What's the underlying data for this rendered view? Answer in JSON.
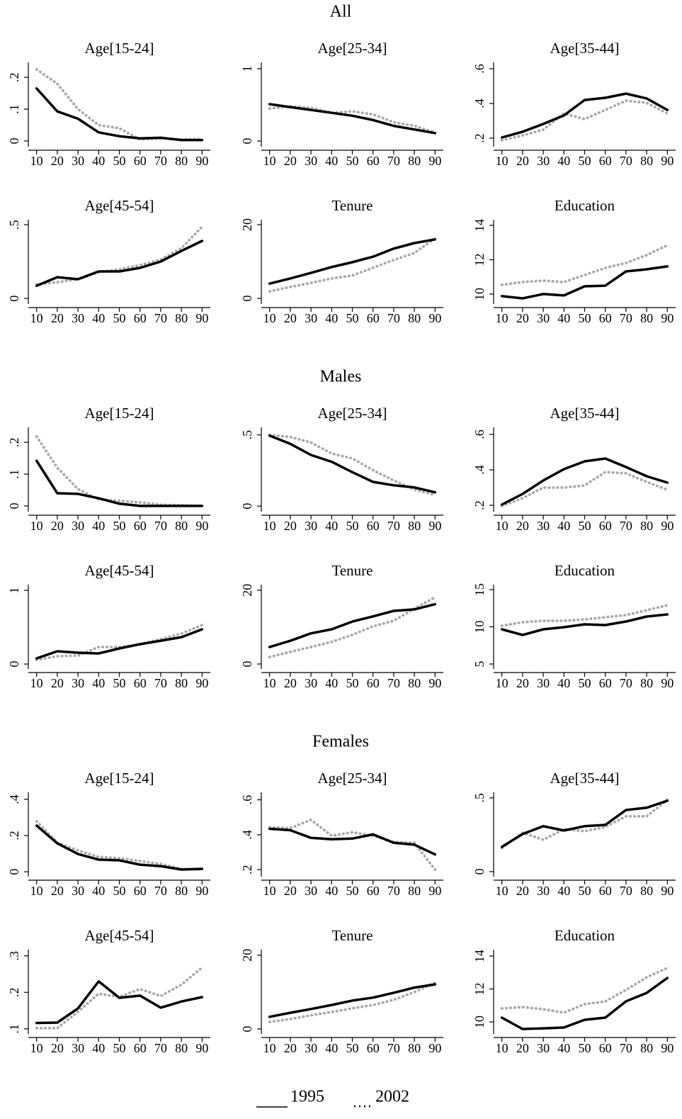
{
  "panel_groups": [
    "All",
    "Males",
    "Females"
  ],
  "legend": [
    {
      "name": "1995",
      "color": "#000000"
    },
    {
      "name": "2002",
      "color": "#aaaaaa"
    }
  ],
  "chart_data": [
    {
      "type": "line",
      "title": "Age[15-24]",
      "x": [
        10,
        20,
        30,
        40,
        50,
        60,
        70,
        80,
        90
      ],
      "xlim": [
        6,
        94
      ],
      "xticks": [
        10,
        20,
        30,
        40,
        50,
        60,
        70,
        80,
        90
      ],
      "ylim": [
        -0.018,
        0.247
      ],
      "yticks": [
        0,
        {
          "value": 0.1,
          "label": ".1"
        },
        {
          "value": 0.2,
          "label": ".2"
        }
      ],
      "series": [
        {
          "color": "#000000",
          "values": [
            0.165,
            0.093,
            0.07,
            0.027,
            0.015,
            0.008,
            0.01,
            0.003,
            0.003
          ]
        },
        {
          "color": "#aaaaaa",
          "values": [
            0.225,
            0.18,
            0.1,
            0.05,
            0.04,
            0.005,
            0.008,
            0.005,
            0.006
          ]
        }
      ]
    },
    {
      "type": "line",
      "title": "Age[25-34]",
      "x": [
        10,
        20,
        30,
        40,
        50,
        60,
        70,
        80,
        90
      ],
      "xlim": [
        6,
        94
      ],
      "xticks": [
        10,
        20,
        30,
        40,
        50,
        60,
        70,
        80,
        90
      ],
      "ylim": [
        -0.078,
        1.088
      ],
      "yticks": [
        0,
        1
      ],
      "series": [
        {
          "color": "#000000",
          "values": [
            0.51,
            0.47,
            0.43,
            0.39,
            0.35,
            0.29,
            0.21,
            0.16,
            0.11
          ]
        },
        {
          "color": "#aaaaaa",
          "values": [
            0.45,
            0.48,
            0.46,
            0.39,
            0.41,
            0.37,
            0.26,
            0.21,
            0.12
          ]
        }
      ]
    },
    {
      "type": "line",
      "title": "Age[35-44]",
      "x": [
        10,
        20,
        30,
        40,
        50,
        60,
        70,
        80,
        90
      ],
      "xlim": [
        6,
        94
      ],
      "xticks": [
        10,
        20,
        30,
        40,
        50,
        60,
        70,
        80,
        90
      ],
      "ylim": [
        0.151,
        0.637
      ],
      "yticks": [
        {
          "value": 0.2,
          "label": ".2"
        },
        {
          "value": 0.4,
          "label": ".4"
        },
        {
          "value": 0.6,
          "label": ".6"
        }
      ],
      "series": [
        {
          "color": "#000000",
          "values": [
            0.204,
            0.237,
            0.282,
            0.331,
            0.42,
            0.433,
            0.457,
            0.429,
            0.363
          ]
        },
        {
          "color": "#aaaaaa",
          "values": [
            0.188,
            0.216,
            0.249,
            0.343,
            0.31,
            0.363,
            0.416,
            0.404,
            0.343
          ]
        }
      ]
    },
    {
      "type": "line",
      "title": "Age[45-54]",
      "x": [
        10,
        20,
        30,
        40,
        50,
        60,
        70,
        80,
        90
      ],
      "xlim": [
        6,
        94
      ],
      "xticks": [
        10,
        20,
        30,
        40,
        50,
        60,
        70,
        80,
        90
      ],
      "ylim": [
        -0.038,
        0.534
      ],
      "yticks": [
        0,
        {
          "value": 0.5,
          "label": ".5"
        }
      ],
      "series": [
        {
          "color": "#000000",
          "values": [
            0.086,
            0.144,
            0.13,
            0.183,
            0.183,
            0.207,
            0.25,
            0.322,
            0.39
          ]
        },
        {
          "color": "#aaaaaa",
          "values": [
            0.096,
            0.11,
            0.13,
            0.178,
            0.197,
            0.226,
            0.264,
            0.341,
            0.486
          ]
        }
      ]
    },
    {
      "type": "line",
      "title": "Tenure",
      "x": [
        10,
        20,
        30,
        40,
        50,
        60,
        70,
        80,
        90
      ],
      "xlim": [
        6,
        94
      ],
      "xticks": [
        10,
        20,
        30,
        40,
        50,
        60,
        70,
        80,
        90
      ],
      "ylim": [
        -1.54,
        21.35
      ],
      "yticks": [
        0,
        20
      ],
      "series": [
        {
          "color": "#000000",
          "values": [
            4.0,
            5.4,
            6.9,
            8.5,
            9.8,
            11.3,
            13.5,
            15.0,
            16.0
          ]
        },
        {
          "color": "#aaaaaa",
          "values": [
            1.9,
            3.1,
            4.2,
            5.4,
            6.2,
            8.3,
            10.4,
            12.3,
            16.3
          ]
        }
      ]
    },
    {
      "type": "line",
      "title": "Education",
      "x": [
        10,
        20,
        30,
        40,
        50,
        60,
        70,
        80,
        90
      ],
      "xlim": [
        6,
        94
      ],
      "xticks": [
        10,
        20,
        30,
        40,
        50,
        60,
        70,
        80,
        90
      ],
      "ylim": [
        9.42,
        14.33
      ],
      "yticks": [
        10,
        12,
        14
      ],
      "series": [
        {
          "color": "#000000",
          "values": [
            9.88,
            9.75,
            10,
            9.92,
            10.45,
            10.49,
            11.32,
            11.44,
            11.61
          ]
        },
        {
          "color": "#aaaaaa",
          "values": [
            10.54,
            10.7,
            10.78,
            10.7,
            11.11,
            11.52,
            11.81,
            12.27,
            12.84
          ]
        }
      ]
    },
    {
      "type": "line",
      "title": "Age[15-24]",
      "x": [
        10,
        20,
        30,
        40,
        50,
        60,
        70,
        80,
        90
      ],
      "xlim": [
        6,
        94
      ],
      "xticks": [
        10,
        20,
        30,
        40,
        50,
        60,
        70,
        80,
        90
      ],
      "ylim": [
        -0.018,
        0.247
      ],
      "yticks": [
        0,
        {
          "value": 0.1,
          "label": ".1"
        },
        {
          "value": 0.2,
          "label": ".2"
        }
      ],
      "series": [
        {
          "color": "#000000",
          "values": [
            0.142,
            0.04,
            0.038,
            0.024,
            0.007,
            0,
            0,
            0,
            0
          ]
        },
        {
          "color": "#aaaaaa",
          "values": [
            0.218,
            0.12,
            0.053,
            0.02,
            0.016,
            0.011,
            0.004,
            0.002,
            0
          ]
        }
      ]
    },
    {
      "type": "line",
      "title": "Age[25-34]",
      "x": [
        10,
        20,
        30,
        40,
        50,
        60,
        70,
        80,
        90
      ],
      "xlim": [
        6,
        94
      ],
      "xticks": [
        10,
        20,
        30,
        40,
        50,
        60,
        70,
        80,
        90
      ],
      "ylim": [
        -0.039,
        0.553
      ],
      "yticks": [
        0,
        {
          "value": 0.5,
          "label": ".5"
        }
      ],
      "series": [
        {
          "color": "#000000",
          "values": [
            0.495,
            0.437,
            0.359,
            0.311,
            0.238,
            0.17,
            0.146,
            0.131,
            0.097
          ]
        },
        {
          "color": "#aaaaaa",
          "values": [
            0.5,
            0.485,
            0.447,
            0.369,
            0.335,
            0.252,
            0.18,
            0.116,
            0.078
          ]
        }
      ]
    },
    {
      "type": "line",
      "title": "Age[35-44]",
      "x": [
        10,
        20,
        30,
        40,
        50,
        60,
        70,
        80,
        90
      ],
      "xlim": [
        6,
        94
      ],
      "xticks": [
        10,
        20,
        30,
        40,
        50,
        60,
        70,
        80,
        90
      ],
      "ylim": [
        0.164,
        0.64
      ],
      "yticks": [
        {
          "value": 0.2,
          "label": ".2"
        },
        {
          "value": 0.4,
          "label": ".4"
        },
        {
          "value": 0.6,
          "label": ".6"
        }
      ],
      "series": [
        {
          "color": "#000000",
          "values": [
            0.204,
            0.264,
            0.34,
            0.404,
            0.448,
            0.464,
            0.416,
            0.364,
            0.328
          ]
        },
        {
          "color": "#aaaaaa",
          "values": [
            0.196,
            0.24,
            0.3,
            0.3,
            0.312,
            0.388,
            0.38,
            0.332,
            0.288
          ]
        }
      ]
    },
    {
      "type": "line",
      "title": "Age[45-54]",
      "x": [
        10,
        20,
        30,
        40,
        50,
        60,
        70,
        80,
        90
      ],
      "xlim": [
        6,
        94
      ],
      "xticks": [
        10,
        20,
        30,
        40,
        50,
        60,
        70,
        80,
        90
      ],
      "ylim": [
        -0.067,
        1.077
      ],
      "yticks": [
        0,
        1
      ],
      "series": [
        {
          "color": "#000000",
          "values": [
            0.077,
            0.173,
            0.154,
            0.144,
            0.212,
            0.269,
            0.317,
            0.365,
            0.471
          ]
        },
        {
          "color": "#aaaaaa",
          "values": [
            0.058,
            0.106,
            0.115,
            0.231,
            0.231,
            0.269,
            0.337,
            0.413,
            0.529
          ]
        }
      ]
    },
    {
      "type": "line",
      "title": "Tenure",
      "x": [
        10,
        20,
        30,
        40,
        50,
        60,
        70,
        80,
        90
      ],
      "xlim": [
        6,
        94
      ],
      "xticks": [
        10,
        20,
        30,
        40,
        50,
        60,
        70,
        80,
        90
      ],
      "ylim": [
        -1.35,
        21.5
      ],
      "yticks": [
        0,
        20
      ],
      "series": [
        {
          "color": "#000000",
          "values": [
            4.6,
            6.3,
            8.3,
            9.4,
            11.5,
            12.9,
            14.4,
            14.8,
            16.2
          ]
        },
        {
          "color": "#aaaaaa",
          "values": [
            1.9,
            3.3,
            4.6,
            6.0,
            7.9,
            10.2,
            11.7,
            15.0,
            18.1
          ]
        }
      ]
    },
    {
      "type": "line",
      "title": "Education",
      "x": [
        10,
        20,
        30,
        40,
        50,
        60,
        70,
        80,
        90
      ],
      "xlim": [
        6,
        94
      ],
      "xticks": [
        10,
        20,
        30,
        40,
        50,
        60,
        70,
        80,
        90
      ],
      "ylim": [
        4.33,
        15.67
      ],
      "yticks": [
        5,
        10,
        15
      ],
      "series": [
        {
          "color": "#000000",
          "values": [
            9.67,
            8.9,
            9.67,
            9.95,
            10.33,
            10.24,
            10.71,
            11.38,
            11.67
          ]
        },
        {
          "color": "#aaaaaa",
          "values": [
            10.14,
            10.62,
            10.81,
            10.81,
            11.0,
            11.29,
            11.57,
            12.24,
            12.9
          ]
        }
      ]
    },
    {
      "type": "line",
      "title": "Age[15-24]",
      "x": [
        10,
        20,
        30,
        40,
        50,
        60,
        70,
        80,
        90
      ],
      "xlim": [
        6,
        94
      ],
      "xticks": [
        10,
        20,
        30,
        40,
        50,
        60,
        70,
        80,
        90
      ],
      "ylim": [
        -0.027,
        0.439
      ],
      "yticks": [
        0,
        {
          "value": 0.2,
          "label": ".2"
        },
        {
          "value": 0.4,
          "label": ".4"
        }
      ],
      "series": [
        {
          "color": "#000000",
          "values": [
            0.255,
            0.157,
            0.098,
            0.067,
            0.063,
            0.039,
            0.031,
            0.012,
            0.016
          ]
        },
        {
          "color": "#aaaaaa",
          "values": [
            0.278,
            0.161,
            0.118,
            0.082,
            0.075,
            0.059,
            0.043,
            0.016,
            0.012
          ]
        }
      ]
    },
    {
      "type": "line",
      "title": "Age[25-34]",
      "x": [
        10,
        20,
        30,
        40,
        50,
        60,
        70,
        80,
        90
      ],
      "xlim": [
        6,
        94
      ],
      "xticks": [
        10,
        20,
        30,
        40,
        50,
        60,
        70,
        80,
        90
      ],
      "ylim": [
        0.16,
        0.643
      ],
      "yticks": [
        {
          "value": 0.2,
          "label": ".2"
        },
        {
          "value": 0.4,
          "label": ".4"
        },
        {
          "value": 0.6,
          "label": ".6"
        }
      ],
      "series": [
        {
          "color": "#000000",
          "values": [
            0.434,
            0.426,
            0.382,
            0.374,
            0.378,
            0.402,
            0.354,
            0.343,
            0.287
          ]
        },
        {
          "color": "#aaaaaa",
          "values": [
            0.442,
            0.438,
            0.485,
            0.394,
            0.414,
            0.394,
            0.358,
            0.354,
            0.2
          ]
        }
      ]
    },
    {
      "type": "line",
      "title": "Age[35-44]",
      "x": [
        10,
        20,
        30,
        40,
        50,
        60,
        70,
        80,
        90
      ],
      "xlim": [
        6,
        94
      ],
      "xticks": [
        10,
        20,
        30,
        40,
        50,
        60,
        70,
        80,
        90
      ],
      "ylim": [
        -0.034,
        0.538
      ],
      "yticks": [
        0,
        {
          "value": 0.5,
          "label": ".5"
        }
      ],
      "series": [
        {
          "color": "#000000",
          "values": [
            0.168,
            0.255,
            0.308,
            0.279,
            0.308,
            0.317,
            0.418,
            0.433,
            0.481
          ]
        },
        {
          "color": "#aaaaaa",
          "values": [
            0.159,
            0.264,
            0.216,
            0.288,
            0.274,
            0.303,
            0.375,
            0.375,
            0.486
          ]
        }
      ]
    },
    {
      "type": "line",
      "title": "Age[45-54]",
      "x": [
        10,
        20,
        30,
        40,
        50,
        60,
        70,
        80,
        90
      ],
      "xlim": [
        6,
        94
      ],
      "xticks": [
        10,
        20,
        30,
        40,
        50,
        60,
        70,
        80,
        90
      ],
      "ylim": [
        0.086,
        0.317
      ],
      "yticks": [
        {
          "value": 0.1,
          "label": ".1"
        },
        {
          "value": 0.2,
          "label": ".2"
        },
        {
          "value": 0.3,
          "label": ".3"
        }
      ],
      "series": [
        {
          "color": "#000000",
          "values": [
            0.116,
            0.117,
            0.156,
            0.23,
            0.185,
            0.191,
            0.158,
            0.175,
            0.187
          ]
        },
        {
          "color": "#aaaaaa",
          "values": [
            0.102,
            0.102,
            0.147,
            0.196,
            0.188,
            0.209,
            0.19,
            0.221,
            0.268
          ]
        }
      ]
    },
    {
      "type": "line",
      "title": "Tenure",
      "x": [
        10,
        20,
        30,
        40,
        50,
        60,
        70,
        80,
        90
      ],
      "xlim": [
        6,
        94
      ],
      "xticks": [
        10,
        20,
        30,
        40,
        50,
        60,
        70,
        80,
        90
      ],
      "ylim": [
        -1.35,
        21.5
      ],
      "yticks": [
        0,
        20
      ],
      "series": [
        {
          "color": "#000000",
          "values": [
            3.3,
            4.4,
            5.4,
            6.5,
            7.7,
            8.5,
            9.8,
            11.2,
            12.1
          ]
        },
        {
          "color": "#aaaaaa",
          "values": [
            1.9,
            2.7,
            3.7,
            4.6,
            5.6,
            6.5,
            7.9,
            10.0,
            12.5
          ]
        }
      ]
    },
    {
      "type": "line",
      "title": "Education",
      "x": [
        10,
        20,
        30,
        40,
        50,
        60,
        70,
        80,
        90
      ],
      "xlim": [
        6,
        94
      ],
      "xticks": [
        10,
        20,
        30,
        40,
        50,
        60,
        70,
        80,
        90
      ],
      "ylim": [
        9.27,
        14.39
      ],
      "yticks": [
        10,
        12,
        14
      ],
      "series": [
        {
          "color": "#000000",
          "values": [
            10.26,
            9.57,
            9.61,
            9.66,
            10.13,
            10.26,
            11.25,
            11.76,
            12.67
          ]
        },
        {
          "color": "#aaaaaa",
          "values": [
            10.82,
            10.9,
            10.77,
            10.56,
            11.08,
            11.25,
            11.94,
            12.71,
            13.27
          ]
        }
      ]
    }
  ]
}
